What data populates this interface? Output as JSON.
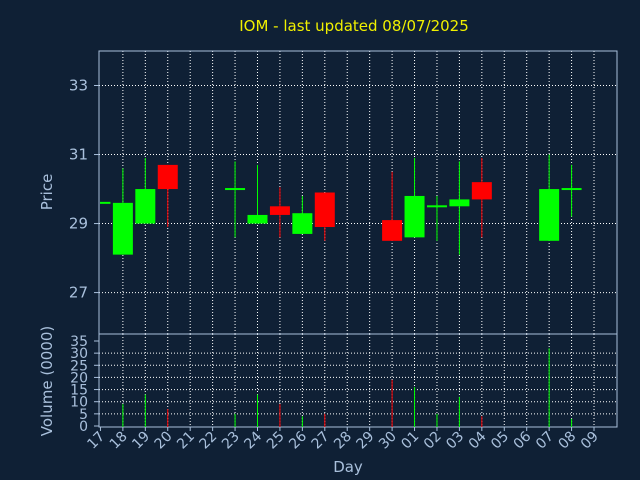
{
  "chart_data": {
    "type": "candlestick",
    "title": "IOM - last updated 08/07/2025",
    "xlabel": "Day",
    "price_panel": {
      "ylabel": "Price",
      "ylim": [
        25.8,
        34.0
      ],
      "yticks": [
        27,
        29,
        31,
        33
      ]
    },
    "volume_panel": {
      "ylabel": "Volume (0000)",
      "ylim": [
        0,
        35
      ],
      "yticks": [
        0,
        5,
        10,
        15,
        20,
        25,
        30,
        35
      ]
    },
    "x_ticks": [
      "17",
      "18",
      "19",
      "20",
      "21",
      "22",
      "23",
      "24",
      "25",
      "26",
      "27",
      "28",
      "29",
      "30",
      "01",
      "02",
      "03",
      "04",
      "05",
      "06",
      "07",
      "08",
      "09"
    ],
    "grid": true,
    "colors": {
      "up": "#00ff00",
      "down": "#ff0000",
      "grid": "#ffffff",
      "axis": "#a9c0dc",
      "title": "#f0f000",
      "background": "#0f2035"
    },
    "candles": [
      {
        "day": "17",
        "open": 29.6,
        "close": 29.6,
        "high": 29.6,
        "low": 29.6,
        "volume": 0
      },
      {
        "day": "18",
        "open": 28.1,
        "close": 29.6,
        "high": 30.6,
        "low": 28.1,
        "volume": 9
      },
      {
        "day": "19",
        "open": 29.0,
        "close": 30.0,
        "high": 30.9,
        "low": 29.0,
        "volume": 13
      },
      {
        "day": "20",
        "open": 30.7,
        "close": 30.0,
        "high": 30.7,
        "low": 28.9,
        "volume": 7
      },
      {
        "day": "23",
        "open": 30.0,
        "close": 30.0,
        "high": 30.8,
        "low": 28.6,
        "volume": 5
      },
      {
        "day": "24",
        "open": 29.0,
        "close": 29.25,
        "high": 30.7,
        "low": 29.0,
        "volume": 13
      },
      {
        "day": "25",
        "open": 29.5,
        "close": 29.25,
        "high": 30.05,
        "low": 28.6,
        "volume": 9
      },
      {
        "day": "26",
        "open": 28.7,
        "close": 29.3,
        "high": 29.8,
        "low": 28.7,
        "volume": 4
      },
      {
        "day": "27",
        "open": 29.9,
        "close": 28.9,
        "high": 29.9,
        "low": 28.5,
        "volume": 5
      },
      {
        "day": "30",
        "open": 29.1,
        "close": 28.5,
        "high": 30.5,
        "low": 28.5,
        "volume": 19
      },
      {
        "day": "01",
        "open": 28.6,
        "close": 29.8,
        "high": 30.9,
        "low": 28.6,
        "volume": 16
      },
      {
        "day": "02",
        "open": 29.5,
        "close": 29.5,
        "high": 29.8,
        "low": 28.5,
        "volume": 5
      },
      {
        "day": "03",
        "open": 29.5,
        "close": 29.7,
        "high": 30.8,
        "low": 28.1,
        "volume": 12
      },
      {
        "day": "04",
        "open": 30.2,
        "close": 29.7,
        "high": 30.9,
        "low": 28.6,
        "volume": 4
      },
      {
        "day": "07",
        "open": 28.5,
        "close": 30.0,
        "high": 31.0,
        "low": 28.5,
        "volume": 32
      },
      {
        "day": "08",
        "open": 30.0,
        "close": 30.0,
        "high": 30.7,
        "low": 29.2,
        "volume": 3
      }
    ]
  }
}
